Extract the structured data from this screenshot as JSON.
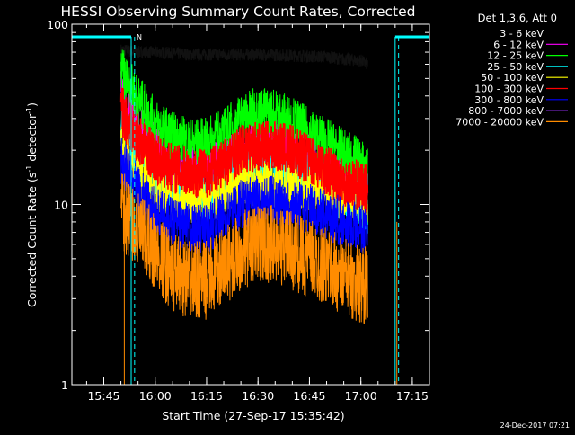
{
  "chart_data": {
    "type": "line",
    "title": "HESSI Observing Summary Count Rates, Corrected",
    "xlabel": "Start Time (27-Sep-17 15:35:42)",
    "ylabel": "Corrected Count Rate (s⁻¹ detector⁻¹)",
    "ylabel_main": "Corrected Count Rate (s",
    "ylabel_sup1": "-1",
    "ylabel_mid": " detector",
    "ylabel_sup2": "-1",
    "ylabel_end": ")",
    "y_scale": "log",
    "ylim": [
      1,
      100
    ],
    "y_ticks": [
      "1",
      "10",
      "100"
    ],
    "xlim": [
      "15:35:42",
      "17:20:00"
    ],
    "x_ticks": [
      "15:45",
      "16:00",
      "16:15",
      "16:30",
      "16:45",
      "17:00",
      "17:15"
    ],
    "legend_title": "Det 1,3,6, Att 0",
    "legend_position": "right",
    "footer_date": "24-Dec-2017 07:21",
    "night_marker_label": "N",
    "night_color": "#00ffff",
    "night_intervals": [
      [
        "15:35:42",
        "15:53:00"
      ],
      [
        "17:10:00",
        "17:20:00"
      ]
    ],
    "saa_markers": [
      "15:54:00",
      "17:11:00"
    ],
    "data_boundaries": [
      "15:51:00",
      "17:10:30"
    ],
    "series": [
      {
        "name": "3 - 6 keV",
        "color": "#000000",
        "x": [
          "15:50",
          "15:55",
          "16:00",
          "16:10",
          "16:20",
          "16:30",
          "16:40",
          "16:50",
          "16:55",
          "17:00",
          "17:02"
        ],
        "values": [
          72,
          70,
          70,
          68,
          68,
          68,
          67,
          66,
          64,
          63,
          60
        ]
      },
      {
        "name": "6 - 12 keV",
        "color": "#ff00ff",
        "x": [
          "15:50",
          "15:52",
          "15:55",
          "16:00",
          "16:05",
          "16:10",
          "16:15",
          "16:20",
          "16:25",
          "16:30",
          "16:35",
          "16:40",
          "16:45",
          "16:50",
          "16:55",
          "17:00",
          "17:02"
        ],
        "values": [
          40,
          32,
          26,
          20,
          17,
          15.5,
          15.5,
          17,
          20,
          22,
          22,
          20,
          18,
          16,
          14,
          13,
          12
        ]
      },
      {
        "name": "12 - 25 keV",
        "color": "#00ff00",
        "x": [
          "15:50",
          "15:52",
          "15:55",
          "16:00",
          "16:05",
          "16:10",
          "16:15",
          "16:20",
          "16:25",
          "16:30",
          "16:35",
          "16:40",
          "16:45",
          "16:50",
          "16:55",
          "17:00",
          "17:02"
        ],
        "values": [
          55,
          48,
          38,
          28,
          24,
          22,
          22,
          25,
          30,
          33,
          32,
          29,
          25,
          22,
          19,
          17,
          15
        ]
      },
      {
        "name": "25 - 50 keV",
        "color": "#00ffff",
        "x": [
          "15:50",
          "15:52",
          "15:55",
          "16:00",
          "16:05",
          "16:10",
          "16:15",
          "16:20",
          "16:25",
          "16:30",
          "16:35",
          "16:40",
          "16:45",
          "16:50",
          "16:55",
          "17:00",
          "17:02"
        ],
        "values": [
          30,
          24,
          18,
          14,
          12,
          11,
          11,
          13,
          15.5,
          17,
          17,
          15.5,
          14,
          12.5,
          11,
          10,
          9.5
        ]
      },
      {
        "name": "50 - 100 keV",
        "color": "#ffff00",
        "x": [
          "15:50",
          "15:52",
          "15:55",
          "16:00",
          "16:05",
          "16:10",
          "16:15",
          "16:20",
          "16:25",
          "16:30",
          "16:35",
          "16:40",
          "16:45",
          "16:50",
          "16:55",
          "17:00",
          "17:02"
        ],
        "values": [
          22,
          18,
          15,
          12.5,
          11,
          10.5,
          10.5,
          11.5,
          13,
          13.5,
          13,
          12.5,
          12,
          11.5,
          11,
          10.5,
          10
        ]
      },
      {
        "name": "100 - 300 keV",
        "color": "#ff0000",
        "x": [
          "15:50",
          "15:52",
          "15:55",
          "16:00",
          "16:05",
          "16:10",
          "16:15",
          "16:20",
          "16:25",
          "16:30",
          "16:35",
          "16:40",
          "16:45",
          "16:50",
          "16:55",
          "17:00",
          "17:02"
        ],
        "values": [
          34,
          28,
          23,
          18,
          16,
          15,
          15,
          17,
          20,
          21,
          21,
          20,
          18,
          15.5,
          13.5,
          12.5,
          12
        ]
      },
      {
        "name": "300 - 800 keV",
        "color": "#0000ff",
        "x": [
          "15:50",
          "15:52",
          "15:55",
          "16:00",
          "16:05",
          "16:10",
          "16:15",
          "16:20",
          "16:25",
          "16:30",
          "16:35",
          "16:40",
          "16:45",
          "16:50",
          "16:55",
          "17:00",
          "17:02"
        ],
        "values": [
          18,
          15,
          12,
          9,
          8,
          7.3,
          7.3,
          8.5,
          10,
          10.5,
          10.5,
          10,
          9.5,
          8.7,
          8,
          7.3,
          7
        ]
      },
      {
        "name": "800 - 7000 keV",
        "color": "#8a2be2",
        "x": [],
        "values": []
      },
      {
        "name": "7000 - 20000 keV",
        "color": "#ff8c00",
        "x": [
          "15:50",
          "15:52",
          "15:55",
          "16:00",
          "16:05",
          "16:10",
          "16:15",
          "16:20",
          "16:25",
          "16:30",
          "16:35",
          "16:40",
          "16:45",
          "16:50",
          "16:55",
          "17:00",
          "17:02"
        ],
        "values": [
          9.5,
          8.5,
          7,
          5.5,
          4.2,
          3.8,
          3.8,
          4.5,
          5.5,
          6.2,
          6,
          5.5,
          5,
          4.5,
          4,
          3.6,
          3.5
        ]
      }
    ]
  }
}
